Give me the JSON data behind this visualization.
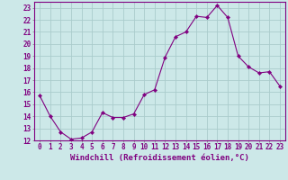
{
  "x": [
    0,
    1,
    2,
    3,
    4,
    5,
    6,
    7,
    8,
    9,
    10,
    11,
    12,
    13,
    14,
    15,
    16,
    17,
    18,
    19,
    20,
    21,
    22,
    23
  ],
  "y": [
    15.7,
    14.0,
    12.7,
    12.1,
    12.2,
    12.7,
    14.3,
    13.9,
    13.9,
    14.2,
    15.8,
    16.2,
    18.9,
    20.6,
    21.0,
    22.3,
    22.2,
    23.2,
    22.2,
    19.0,
    18.1,
    17.6,
    17.7,
    16.5
  ],
  "line_color": "#800080",
  "marker": "D",
  "marker_size": 2.2,
  "bg_color": "#cce8e8",
  "grid_color": "#aacccc",
  "xlabel": "Windchill (Refroidissement éolien,°C)",
  "ylim": [
    12,
    23.5
  ],
  "xlim": [
    -0.5,
    23.5
  ],
  "yticks": [
    12,
    13,
    14,
    15,
    16,
    17,
    18,
    19,
    20,
    21,
    22,
    23
  ],
  "xticks": [
    0,
    1,
    2,
    3,
    4,
    5,
    6,
    7,
    8,
    9,
    10,
    11,
    12,
    13,
    14,
    15,
    16,
    17,
    18,
    19,
    20,
    21,
    22,
    23
  ],
  "label_color": "#800080",
  "font_size": 5.5,
  "xlabel_font_size": 6.5,
  "border_color": "#808080",
  "spine_color": "#800080"
}
